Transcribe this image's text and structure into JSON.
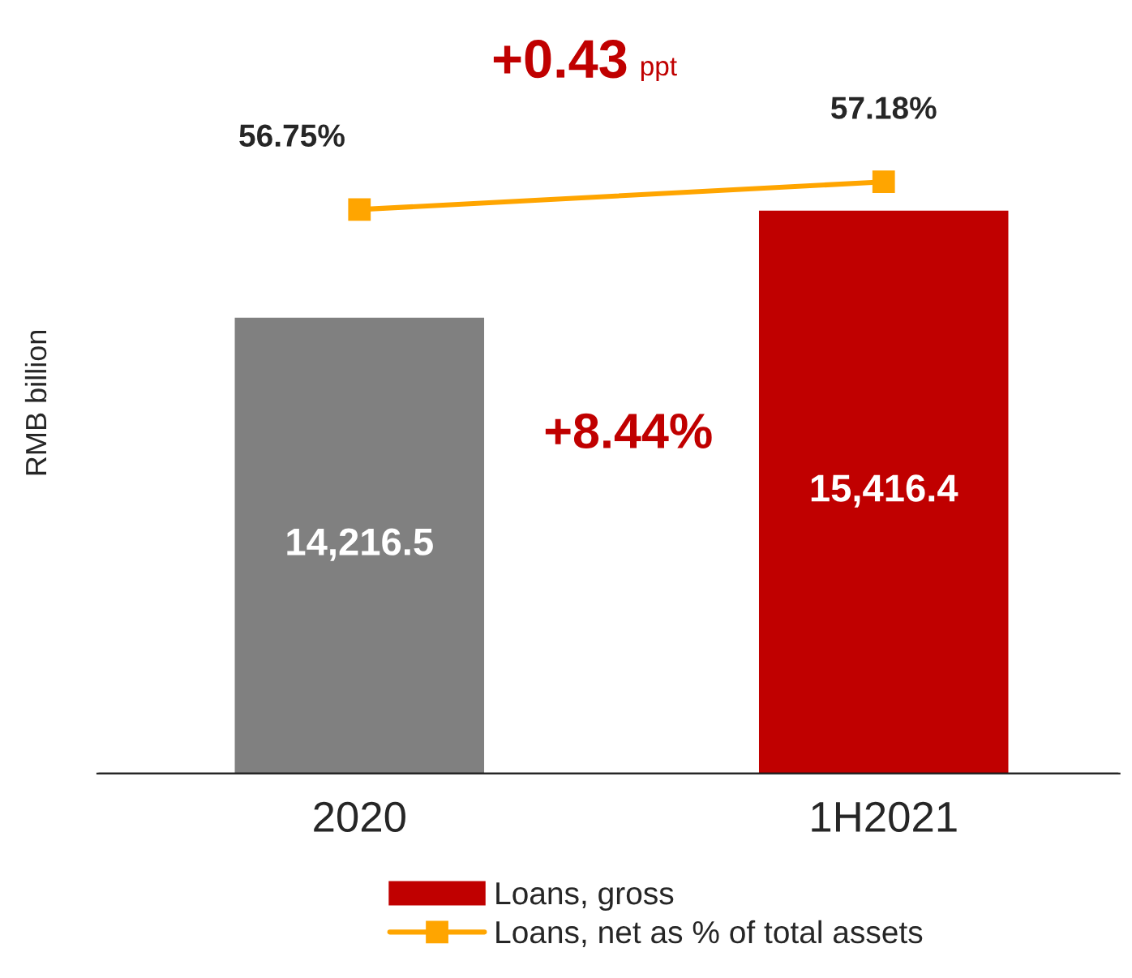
{
  "chart_data": {
    "type": "bar",
    "categories": [
      "2020",
      "1H2021"
    ],
    "ylabel": "RMB billion",
    "ylim": [
      9100,
      17400
    ],
    "y2lim": [
      48,
      59.5
    ],
    "tick_labels": "x",
    "legend": "bottom",
    "grid": false,
    "series": [
      {
        "name": "Loans, gross",
        "color": "#c00000",
        "colors": [
          "#808080",
          "#c00000"
        ],
        "values": [
          14216.5,
          15416.4
        ],
        "value_labels": [
          "14,216.5",
          "15,416.4"
        ]
      },
      {
        "name": "Loans, net as % of total assets",
        "type": "line",
        "axis": "y2",
        "color": "#ffa500",
        "marker": "square",
        "line_style": "solid",
        "values": [
          56.75,
          57.18
        ],
        "value_labels": [
          "56.75%",
          "57.18%"
        ]
      }
    ],
    "annotations": [
      "+0.43",
      "ppt",
      "+8.44%"
    ]
  }
}
